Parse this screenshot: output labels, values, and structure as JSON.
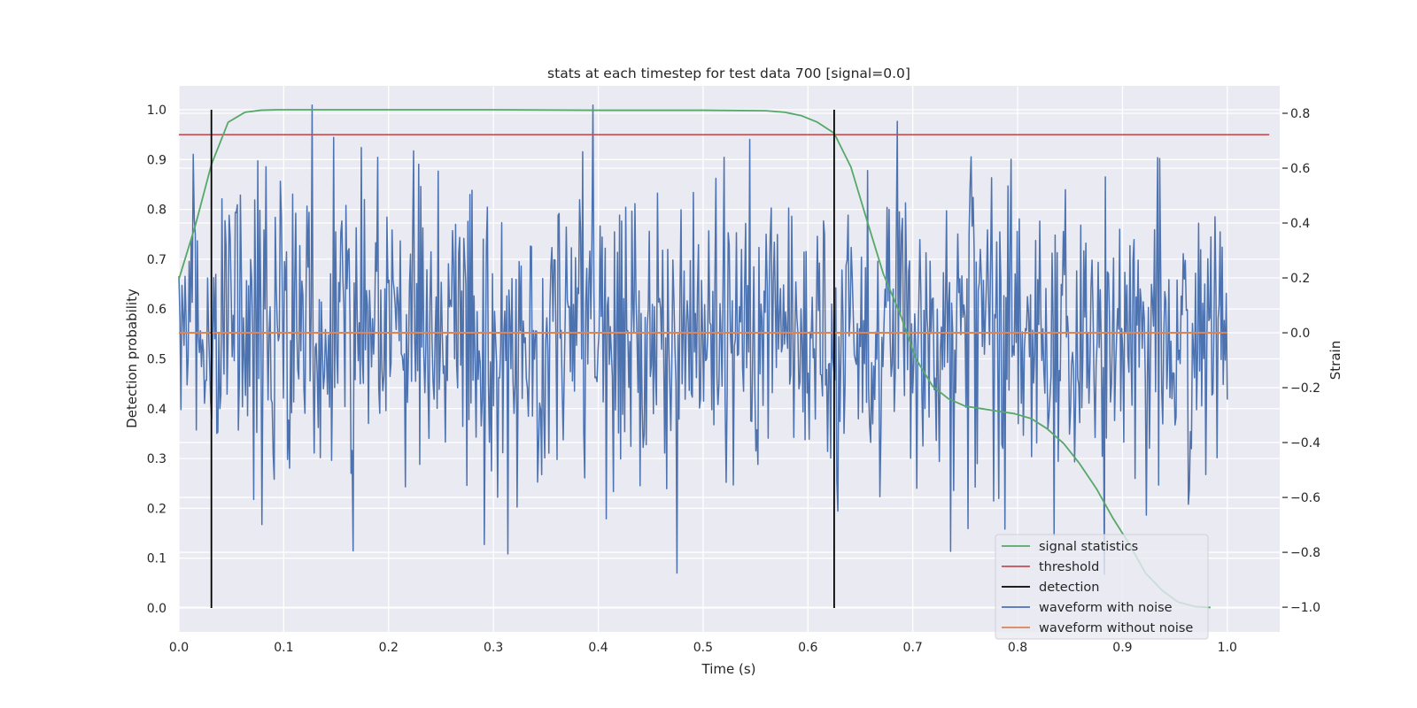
{
  "chart_data": {
    "type": "line",
    "title": "stats at each timestep for test data 700 [signal=0.0]",
    "xlabel": "Time (s)",
    "ylabel_left": "Detection probability",
    "ylabel_right": "Strain",
    "xlim": [
      0.0,
      1.05
    ],
    "ylim_left": [
      -0.048,
      1.048
    ],
    "ylim_right": [
      -1.09,
      0.9
    ],
    "x_ticks": [
      "0.0",
      "0.1",
      "0.2",
      "0.3",
      "0.4",
      "0.5",
      "0.6",
      "0.7",
      "0.8",
      "0.9",
      "1.0"
    ],
    "y_ticks_left": [
      "0.0",
      "0.1",
      "0.2",
      "0.3",
      "0.4",
      "0.5",
      "0.6",
      "0.7",
      "0.8",
      "0.9",
      "1.0"
    ],
    "y_ticks_right": [
      "−1.0",
      "−0.8",
      "−0.6",
      "−0.4",
      "−0.2",
      "0.0",
      "0.2",
      "0.4",
      "0.6",
      "0.8"
    ],
    "grid": true,
    "legend_position": "lower-right",
    "colors": {
      "signal_statistics": "#55a868",
      "threshold": "#c44e52",
      "detection": "#000000",
      "waveform_with_noise": "#4c72b0",
      "waveform_without_noise": "#dd8452",
      "plot_background": "#eaeaf2",
      "grid": "#ffffff"
    },
    "signal_statistics": {
      "name": "signal statistics",
      "x": [
        0.0,
        0.016,
        0.031,
        0.047,
        0.063,
        0.078,
        0.094,
        0.2,
        0.3,
        0.4,
        0.5,
        0.56,
        0.578,
        0.594,
        0.609,
        0.625,
        0.641,
        0.656,
        0.672,
        0.688,
        0.703,
        0.719,
        0.734,
        0.75,
        0.766,
        0.781,
        0.797,
        0.813,
        0.828,
        0.844,
        0.859,
        0.875,
        0.891,
        0.906,
        0.922,
        0.938,
        0.953,
        0.969,
        0.984
      ],
      "y": [
        0.66,
        0.77,
        0.89,
        0.975,
        0.995,
        0.999,
        1.0,
        1.0,
        1.0,
        0.999,
        0.999,
        0.998,
        0.995,
        0.988,
        0.975,
        0.953,
        0.885,
        0.78,
        0.67,
        0.59,
        0.5,
        0.445,
        0.42,
        0.405,
        0.4,
        0.395,
        0.39,
        0.38,
        0.36,
        0.33,
        0.29,
        0.24,
        0.18,
        0.13,
        0.07,
        0.035,
        0.012,
        0.003,
        0.001
      ]
    },
    "threshold": {
      "name": "threshold",
      "value": 0.95,
      "x_range": [
        0.0,
        1.04
      ]
    },
    "detection": {
      "name": "detection",
      "x": [
        0.031,
        0.625
      ],
      "y_range": [
        0.0,
        1.0
      ]
    },
    "waveform_with_noise": {
      "name": "waveform with noise",
      "x_range": [
        0.0,
        1.0
      ],
      "n_points": 1024,
      "strain_range": [
        -0.91,
        0.83
      ]
    },
    "waveform_without_noise": {
      "name": "waveform without noise",
      "value": 0.0,
      "x_range": [
        0.0,
        1.0
      ]
    }
  }
}
